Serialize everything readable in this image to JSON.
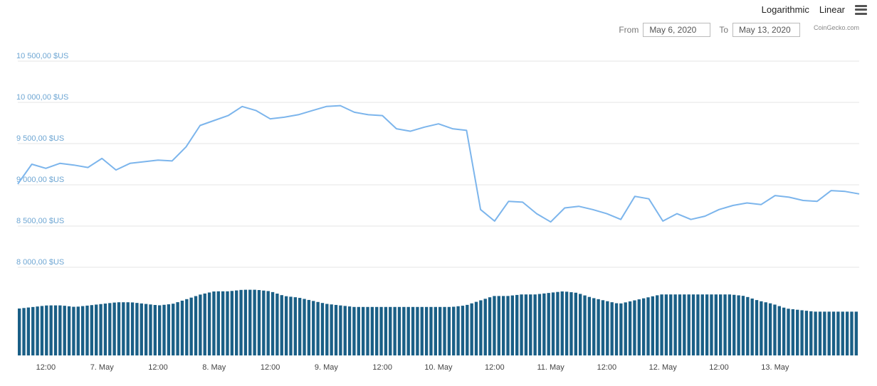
{
  "toolbar": {
    "log_label": "Logarithmic",
    "linear_label": "Linear"
  },
  "range": {
    "from_label": "From",
    "from_value": "May 6, 2020",
    "to_label": "To",
    "to_value": "May 13, 2020"
  },
  "credit": "CoinGecko.com",
  "colors": {
    "line": "#7cb5ec",
    "bars": "#1a5f86",
    "grid": "#e6e6e6"
  },
  "chart_data": {
    "type": "line",
    "ylim": [
      8000,
      10500
    ],
    "y_ticks": [
      10500,
      10000,
      9500,
      9000,
      8500,
      8000
    ],
    "y_tick_labels": [
      "10 500,00 $US",
      "10 000,00 $US",
      "9 500,00 $US",
      "9 000,00 $US",
      "8 500,00 $US",
      "8 000,00 $US"
    ],
    "x_tick_labels": [
      "12:00",
      "7. May",
      "12:00",
      "8. May",
      "12:00",
      "9. May",
      "12:00",
      "10. May",
      "12:00",
      "11. May",
      "12:00",
      "12. May",
      "12:00",
      "13. May"
    ],
    "x_range_hours": [
      6,
      180
    ],
    "grid": true,
    "price_series": {
      "hours": [
        0,
        3,
        6,
        9,
        12,
        15,
        18,
        21,
        24,
        27,
        30,
        33,
        36,
        39,
        42,
        45,
        48,
        51,
        54,
        57,
        60,
        63,
        66,
        69,
        72,
        75,
        78,
        81,
        84,
        87,
        90,
        93,
        96,
        99,
        102,
        105,
        108,
        111,
        114,
        117,
        120,
        123,
        126,
        129,
        132,
        135,
        138,
        141,
        144,
        147,
        150,
        153,
        156,
        159,
        162,
        165,
        168,
        171,
        174,
        177,
        180
      ],
      "values": [
        9010,
        9250,
        9200,
        9260,
        9240,
        9210,
        9320,
        9180,
        9260,
        9280,
        9300,
        9290,
        9460,
        9720,
        9780,
        9840,
        9950,
        9900,
        9800,
        9820,
        9850,
        9900,
        9950,
        9960,
        9880,
        9850,
        9840,
        9680,
        9650,
        9700,
        9740,
        9680,
        9660,
        8700,
        8560,
        8800,
        8790,
        8650,
        8550,
        8720,
        8740,
        8700,
        8650,
        8580,
        8860,
        8830,
        8560,
        8650,
        8580,
        8620,
        8700,
        8750,
        8780,
        8760,
        8870,
        8850,
        8810,
        8800,
        8930,
        8920,
        8890
      ]
    },
    "volume_series": {
      "relative_levels": [
        0.6,
        0.62,
        0.64,
        0.64,
        0.62,
        0.64,
        0.66,
        0.68,
        0.68,
        0.66,
        0.64,
        0.66,
        0.72,
        0.78,
        0.82,
        0.82,
        0.84,
        0.84,
        0.82,
        0.76,
        0.74,
        0.7,
        0.66,
        0.64,
        0.62,
        0.62,
        0.62,
        0.62,
        0.62,
        0.62,
        0.62,
        0.62,
        0.64,
        0.7,
        0.76,
        0.76,
        0.78,
        0.78,
        0.8,
        0.82,
        0.8,
        0.74,
        0.7,
        0.66,
        0.7,
        0.74,
        0.78,
        0.78,
        0.78,
        0.78,
        0.78,
        0.78,
        0.76,
        0.7,
        0.66,
        0.6,
        0.58,
        0.56,
        0.56,
        0.56,
        0.56
      ]
    }
  }
}
